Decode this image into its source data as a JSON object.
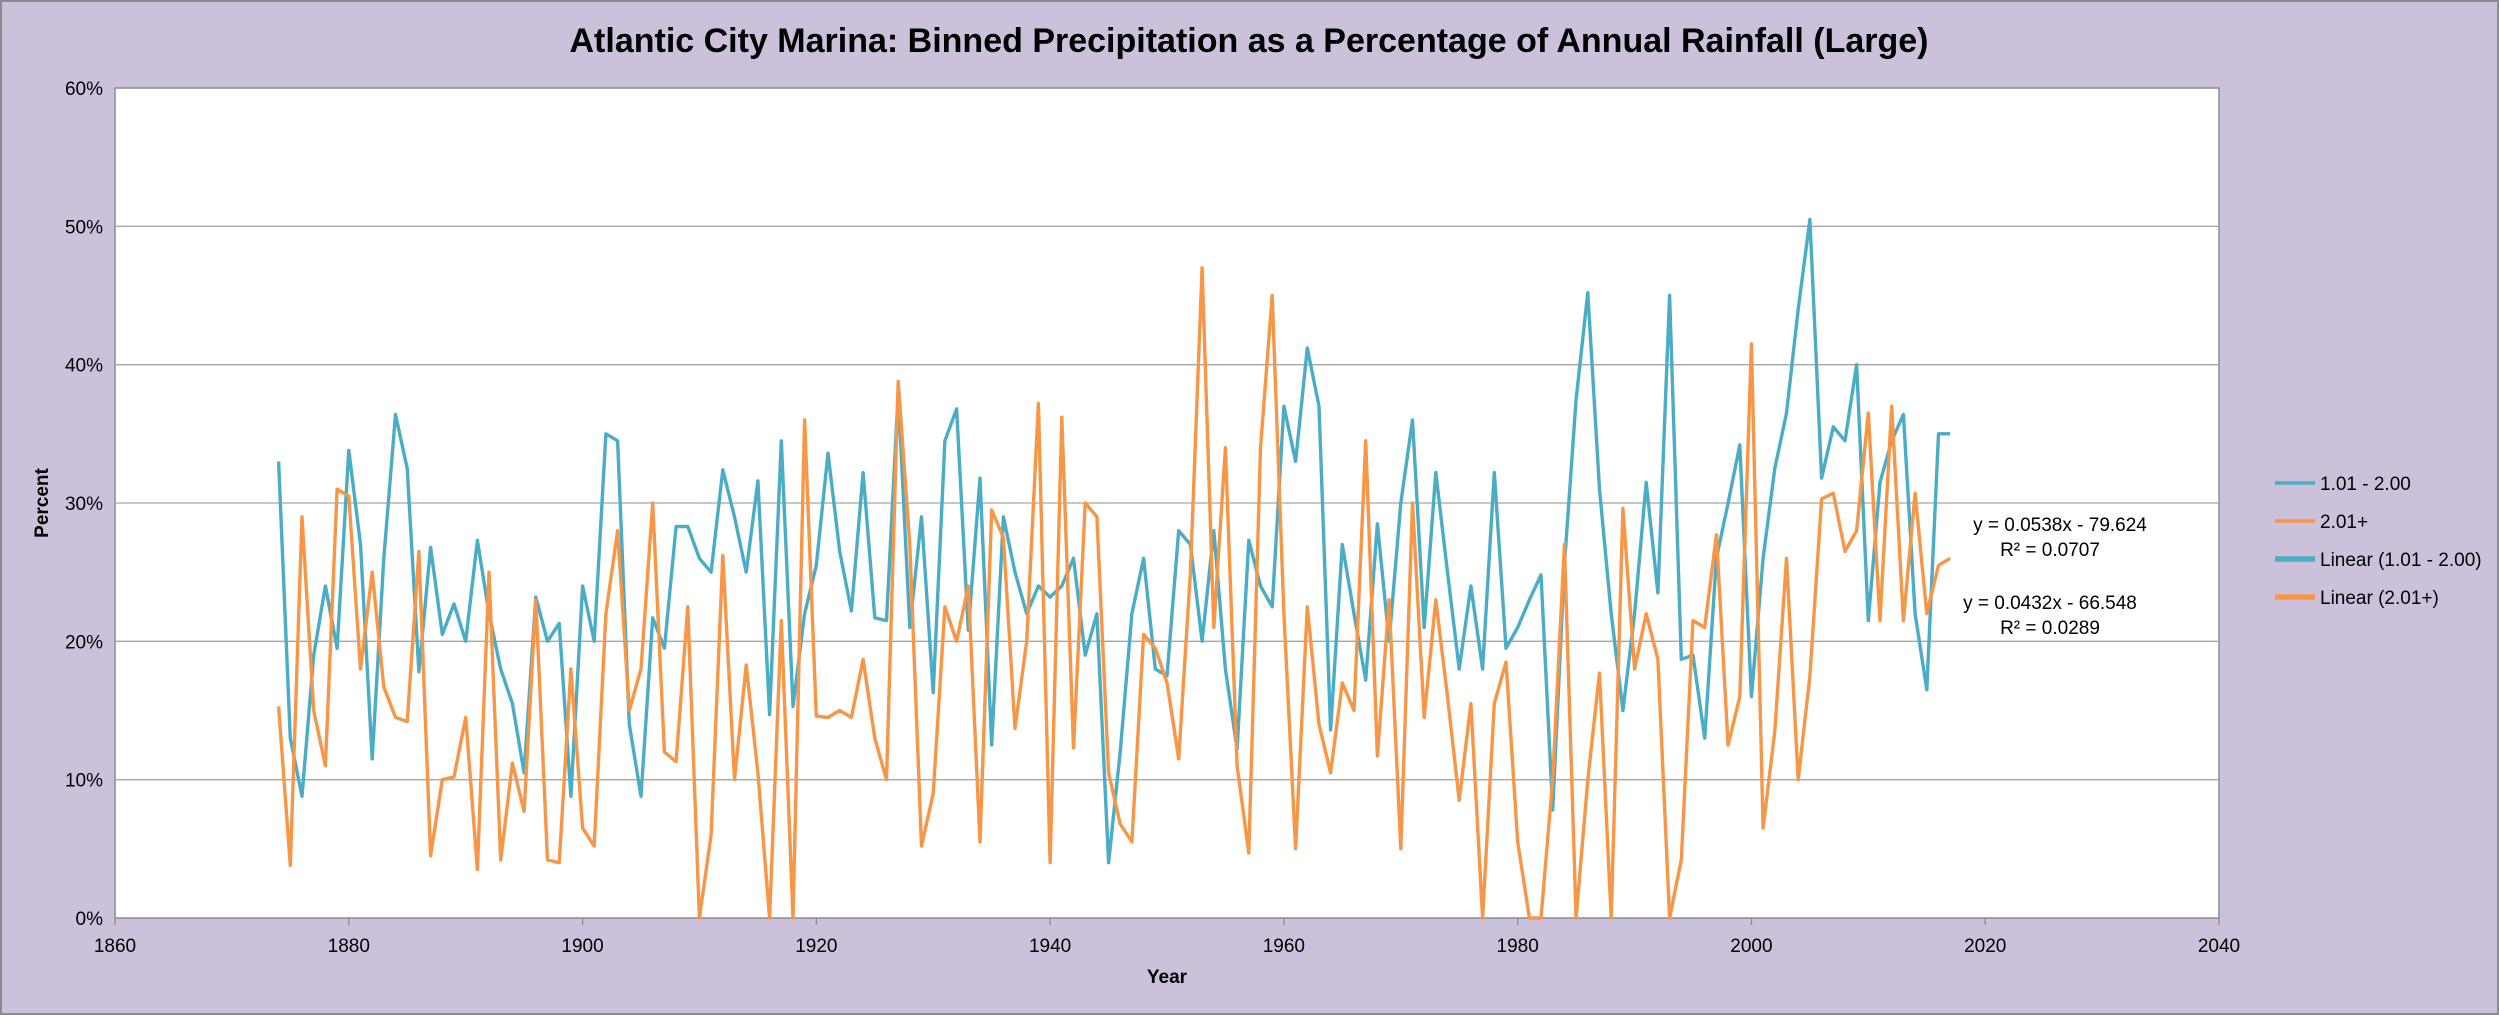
{
  "chart_data": {
    "type": "line",
    "title": "Atlantic City Marina: Binned Precipitation as a Percentage of Annual Rainfall (Large)",
    "xlabel": "Year",
    "ylabel": "Percent",
    "xlim": [
      1860,
      2040
    ],
    "ylim": [
      0,
      0.6
    ],
    "x_ticks": [
      "1860",
      "1880",
      "1900",
      "1920",
      "1940",
      "1960",
      "1980",
      "2000",
      "2020",
      "2040"
    ],
    "y_ticks": [
      "0%",
      "10%",
      "20%",
      "30%",
      "40%",
      "50%",
      "60%"
    ],
    "grid": "horizontal",
    "legend_position": "right",
    "legend": [
      "1.01 - 2.00",
      "2.01+",
      "Linear (1.01 - 2.00)",
      "Linear (2.01+)"
    ],
    "colors": {
      "series1": "#4bacc6",
      "series2": "#f79646",
      "background": "#ccc1da",
      "plot": "#ffffff",
      "grid": "#a6a6a6"
    },
    "x": [
      1874,
      1875,
      1876,
      1877,
      1878,
      1879,
      1880,
      1881,
      1882,
      1883,
      1884,
      1885,
      1886,
      1887,
      1888,
      1889,
      1890,
      1891,
      1892,
      1893,
      1894,
      1895,
      1896,
      1897,
      1898,
      1899,
      1900,
      1901,
      1902,
      1903,
      1904,
      1905,
      1906,
      1907,
      1908,
      1909,
      1910,
      1911,
      1912,
      1913,
      1914,
      1915,
      1916,
      1917,
      1918,
      1919,
      1920,
      1921,
      1922,
      1923,
      1924,
      1925,
      1926,
      1927,
      1928,
      1929,
      1930,
      1931,
      1932,
      1933,
      1934,
      1935,
      1936,
      1937,
      1938,
      1939,
      1940,
      1941,
      1942,
      1943,
      1944,
      1945,
      1946,
      1947,
      1948,
      1949,
      1950,
      1951,
      1952,
      1953,
      1954,
      1955,
      1956,
      1957,
      1958,
      1959,
      1960,
      1961,
      1962,
      1963,
      1964,
      1965,
      1966,
      1967,
      1968,
      1969,
      1970,
      1971,
      1972,
      1973,
      1974,
      1975,
      1976,
      1977,
      1978,
      1979,
      1980,
      1981,
      1982,
      1983,
      1984,
      1985,
      1986,
      1987,
      1988,
      1989,
      1990,
      1991,
      1992,
      1993,
      1994,
      1995,
      1996,
      1997,
      1998,
      1999,
      2000,
      2001,
      2002,
      2003,
      2004,
      2005,
      2006,
      2007,
      2008,
      2009,
      2010,
      2011,
      2012,
      2013,
      2014,
      2015,
      2016,
      2017
    ],
    "series": [
      {
        "name": "1.01 - 2.00",
        "values": [
          0.33,
          0.13,
          0.088,
          0.19,
          0.24,
          0.195,
          0.338,
          0.27,
          0.115,
          0.26,
          0.364,
          0.325,
          0.178,
          0.268,
          0.205,
          0.227,
          0.2,
          0.273,
          0.22,
          0.18,
          0.155,
          0.105,
          0.232,
          0.2,
          0.213,
          0.088,
          0.24,
          0.2,
          0.35,
          0.345,
          0.14,
          0.088,
          0.217,
          0.195,
          0.283,
          0.283,
          0.26,
          0.25,
          0.324,
          0.29,
          0.25,
          0.316,
          0.147,
          0.345,
          0.153,
          0.22,
          0.255,
          0.336,
          0.265,
          0.222,
          0.322,
          0.217,
          0.215,
          0.38,
          0.21,
          0.29,
          0.163,
          0.345,
          0.368,
          0.208,
          0.318,
          0.125,
          0.29,
          0.25,
          0.22,
          0.24,
          0.232,
          0.24,
          0.26,
          0.19,
          0.22,
          0.04,
          0.12,
          0.22,
          0.26,
          0.18,
          0.175,
          0.28,
          0.27,
          0.2,
          0.28,
          0.18,
          0.122,
          0.273,
          0.24,
          0.225,
          0.37,
          0.33,
          0.412,
          0.37,
          0.136,
          0.27,
          0.22,
          0.172,
          0.285,
          0.2,
          0.3,
          0.36,
          0.21,
          0.322,
          0.25,
          0.18,
          0.24,
          0.18,
          0.322,
          0.195,
          0.21,
          0.23,
          0.248,
          0.078,
          0.255,
          0.375,
          0.452,
          0.31,
          0.22,
          0.15,
          0.22,
          0.315,
          0.235,
          0.45,
          0.187,
          0.19,
          0.13,
          0.26,
          0.3,
          0.342,
          0.16,
          0.26,
          0.325,
          0.365,
          0.44,
          0.505,
          0.318,
          0.355,
          0.345,
          0.4,
          0.215,
          0.315,
          0.345,
          0.364,
          0.22,
          0.165,
          0.35,
          0.35
        ]
      },
      {
        "name": "2.01+",
        "values": [
          0.153,
          0.038,
          0.29,
          0.15,
          0.11,
          0.31,
          0.305,
          0.18,
          0.25,
          0.167,
          0.145,
          0.142,
          0.265,
          0.045,
          0.1,
          0.102,
          0.145,
          0.035,
          0.25,
          0.042,
          0.112,
          0.077,
          0.23,
          0.042,
          0.04,
          0.18,
          0.065,
          0.052,
          0.22,
          0.28,
          0.15,
          0.18,
          0.3,
          0.12,
          0.113,
          0.225,
          0.0,
          0.06,
          0.262,
          0.1,
          0.183,
          0.105,
          0.0,
          0.215,
          0.0,
          0.36,
          0.146,
          0.145,
          0.15,
          0.145,
          0.187,
          0.13,
          0.1,
          0.388,
          0.27,
          0.052,
          0.09,
          0.225,
          0.2,
          0.24,
          0.055,
          0.295,
          0.275,
          0.137,
          0.2,
          0.372,
          0.04,
          0.362,
          0.123,
          0.3,
          0.29,
          0.105,
          0.068,
          0.055,
          0.205,
          0.195,
          0.17,
          0.115,
          0.25,
          0.47,
          0.21,
          0.34,
          0.11,
          0.047,
          0.34,
          0.45,
          0.22,
          0.05,
          0.225,
          0.14,
          0.105,
          0.17,
          0.15,
          0.345,
          0.117,
          0.23,
          0.05,
          0.3,
          0.145,
          0.23,
          0.16,
          0.085,
          0.155,
          0.0,
          0.155,
          0.185,
          0.055,
          0.0,
          0.0,
          0.1,
          0.27,
          0.0,
          0.1,
          0.177,
          0.0,
          0.296,
          0.18,
          0.22,
          0.187,
          0.0,
          0.042,
          0.215,
          0.21,
          0.277,
          0.125,
          0.16,
          0.415,
          0.065,
          0.135,
          0.26,
          0.1,
          0.175,
          0.303,
          0.307,
          0.265,
          0.28,
          0.365,
          0.215,
          0.37,
          0.215,
          0.307,
          0.22,
          0.255,
          0.26
        ]
      }
    ],
    "trendlines": [
      {
        "name": "Linear (1.01 - 2.00)",
        "slope": 0.0538,
        "intercept": -79.624,
        "equation": "y = 0.0538x - 79.624",
        "r2": "R² = 0.0707"
      },
      {
        "name": "Linear (2.01+)",
        "slope": 0.0432,
        "intercept": -66.548,
        "equation": "y = 0.0432x - 66.548",
        "r2": "R² = 0.0289"
      }
    ]
  }
}
